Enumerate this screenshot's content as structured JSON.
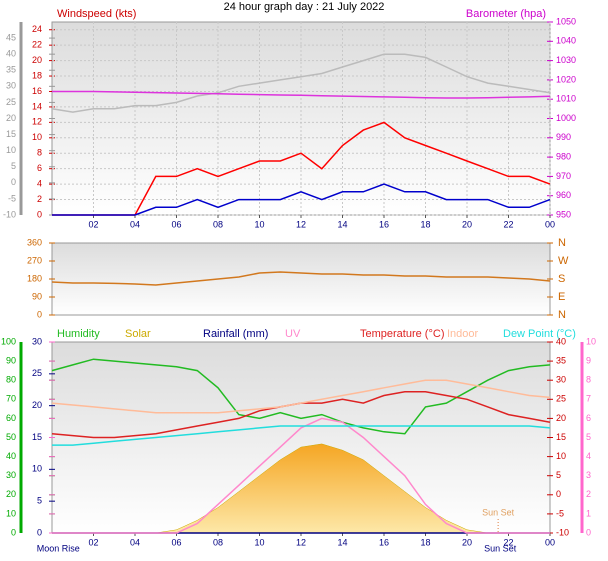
{
  "chart_data": [
    {
      "type": "line",
      "title": "24 hour graph day : 21 July 2022",
      "ylabel": "Windspeed (kts)",
      "y2label": "Barometer (hpa)",
      "x": [
        0,
        1,
        2,
        3,
        4,
        5,
        6,
        7,
        8,
        9,
        10,
        11,
        12,
        13,
        14,
        15,
        16,
        17,
        18,
        19,
        20,
        21,
        22,
        23,
        24
      ],
      "xlim": [
        0,
        24
      ],
      "xticks": [
        {
          "value": 2,
          "label": "02"
        },
        {
          "value": 4,
          "label": "04"
        },
        {
          "value": 6,
          "label": "06"
        },
        {
          "value": 8,
          "label": "08"
        },
        10,
        12,
        14,
        16,
        18,
        20,
        22,
        {
          "value": 24,
          "label": "00"
        }
      ],
      "ylim": [
        0,
        25
      ],
      "yticks": [
        0,
        2,
        4,
        6,
        8,
        10,
        12,
        14,
        16,
        18,
        20,
        22,
        24
      ],
      "ytick_color": "#cc0000",
      "y2lim": [
        950,
        1050
      ],
      "y2ticks": [
        950,
        960,
        970,
        980,
        990,
        1000,
        1010,
        1020,
        1030,
        1040,
        1050
      ],
      "y2tick_color": "#cc00cc",
      "y3lim": [
        -10,
        50
      ],
      "y3ticks": [
        -10,
        -5,
        0,
        5,
        10,
        15,
        20,
        25,
        30,
        35,
        40,
        45
      ],
      "y3tick_color": "#999999",
      "grid": true,
      "series": [
        {
          "color": "#bbbbbb",
          "axis": "y3",
          "values": [
            23,
            22,
            23,
            23,
            24,
            24,
            25,
            27,
            28,
            30,
            31,
            32,
            33,
            34,
            36,
            38,
            40,
            40,
            39,
            36,
            33,
            31,
            30,
            29,
            28
          ]
        },
        {
          "color": "#ff0000",
          "values": [
            0,
            0,
            0,
            0,
            0,
            5,
            5,
            6,
            5,
            6,
            7,
            7,
            8,
            6,
            9,
            11,
            12,
            10,
            9,
            8,
            7,
            6,
            5,
            5,
            4
          ]
        },
        {
          "color": "#0000cc",
          "values": [
            0,
            0,
            0,
            0,
            0,
            1,
            1,
            2,
            1,
            2,
            2,
            2,
            3,
            2,
            3,
            3,
            4,
            3,
            3,
            2,
            2,
            2,
            1,
            1,
            2
          ]
        },
        {
          "color": "#dd33dd",
          "axis": "y2",
          "values": [
            1014,
            1014,
            1014,
            1013.8,
            1013.6,
            1013.4,
            1013.2,
            1013,
            1012.8,
            1012.6,
            1012.4,
            1012.2,
            1012,
            1011.8,
            1011.6,
            1011.4,
            1011.2,
            1011,
            1010.8,
            1010.6,
            1010.6,
            1010.8,
            1011,
            1011.2,
            1011.5
          ]
        }
      ]
    },
    {
      "type": "line",
      "x": [
        0,
        1,
        2,
        3,
        4,
        5,
        6,
        7,
        8,
        9,
        10,
        11,
        12,
        13,
        14,
        15,
        16,
        17,
        18,
        19,
        20,
        21,
        22,
        23,
        24
      ],
      "xlim": [
        0,
        24
      ],
      "ylim": [
        0,
        360
      ],
      "yticks": [
        0,
        90,
        180,
        270,
        360
      ],
      "ytick_color": "#cc6600",
      "y2lim": [
        0,
        360
      ],
      "y2ticks": [
        {
          "value": 0,
          "label": "N"
        },
        {
          "value": 90,
          "label": "E"
        },
        {
          "value": 180,
          "label": "S"
        },
        {
          "value": 270,
          "label": "W"
        },
        {
          "value": 360,
          "label": "N"
        }
      ],
      "y2tick_color": "#cc6600",
      "series": [
        {
          "color": "#d2781e",
          "values": [
            165,
            160,
            160,
            158,
            155,
            150,
            160,
            170,
            180,
            190,
            210,
            215,
            210,
            205,
            205,
            200,
            200,
            195,
            195,
            190,
            190,
            190,
            185,
            180,
            170
          ]
        }
      ]
    },
    {
      "type": "line",
      "x": [
        0,
        1,
        2,
        3,
        4,
        5,
        6,
        7,
        8,
        9,
        10,
        11,
        12,
        13,
        14,
        15,
        16,
        17,
        18,
        19,
        20,
        21,
        22,
        23,
        24
      ],
      "xlim": [
        0,
        24
      ],
      "xticks": [
        {
          "value": 2,
          "label": "02"
        },
        {
          "value": 4,
          "label": "04"
        },
        {
          "value": 6,
          "label": "06"
        },
        {
          "value": 8,
          "label": "08"
        },
        10,
        12,
        14,
        16,
        18,
        20,
        22,
        {
          "value": 24,
          "label": "00"
        }
      ],
      "ylim": [
        0,
        30
      ],
      "yticks": [
        0,
        5,
        10,
        15,
        20,
        25,
        30
      ],
      "ytick_color": "#000080",
      "y2lim": [
        -10,
        40
      ],
      "y2ticks": [
        -10,
        -5,
        0,
        5,
        10,
        15,
        20,
        25,
        30,
        35,
        40
      ],
      "y2tick_color": "#cc0000",
      "y3lim": [
        0,
        100
      ],
      "y3ticks": [
        0,
        10,
        20,
        30,
        40,
        50,
        60,
        70,
        80,
        90,
        100
      ],
      "y3tick_color": "#00aa00",
      "y4lim": [
        0,
        10
      ],
      "y4ticks": [
        0,
        1,
        2,
        3,
        4,
        5,
        6,
        7,
        8,
        9,
        10
      ],
      "y4tick_color": "#ff66cc",
      "annotations": [
        {
          "text": "Moon Rise",
          "x": 0.3,
          "position": "below"
        },
        {
          "text": "Sun Set",
          "x": 21.6,
          "position": "below"
        },
        {
          "text": "Sun Set",
          "x": 21.5,
          "position": "inside"
        }
      ],
      "series": [
        {
          "name": "Humidity",
          "color": "#22bb22",
          "axis": "y3",
          "values": [
            85,
            88,
            91,
            90,
            89,
            88,
            87,
            85,
            76,
            62,
            60,
            63,
            60,
            62,
            58,
            55,
            53,
            52,
            66,
            68,
            74,
            80,
            85,
            87,
            88
          ]
        },
        {
          "name": "Solar",
          "color": "#ccaa00",
          "area": true,
          "values": [
            0,
            0,
            0,
            0,
            0,
            0,
            0.5,
            2,
            4,
            6.5,
            9,
            11.5,
            13.5,
            14,
            13,
            11.5,
            9,
            6.5,
            4,
            2,
            0.5,
            0,
            0,
            0,
            0
          ]
        },
        {
          "name": "Rainfall (mm)",
          "color": "#000080",
          "values": [
            0,
            0,
            0,
            0,
            0,
            0,
            0,
            0,
            0,
            0,
            0,
            0,
            0,
            0,
            0,
            0,
            0,
            0,
            0,
            0,
            0,
            0,
            0,
            0,
            0
          ]
        },
        {
          "name": "UV",
          "color": "#ff88cc",
          "axis": "y4",
          "values": [
            0,
            0,
            0,
            0,
            0,
            0,
            0,
            0.5,
            1.5,
            2.5,
            3.5,
            4.5,
            5.5,
            6,
            5.8,
            5,
            4,
            3,
            1.5,
            0.5,
            0,
            0,
            0,
            0,
            0
          ]
        },
        {
          "name": "Temperature (°C)",
          "color": "#dd2222",
          "axis": "y2",
          "values": [
            16,
            15.5,
            15,
            15,
            15.5,
            16,
            17,
            18,
            19,
            20,
            22,
            23,
            24,
            24,
            25,
            24,
            26,
            27,
            27,
            26,
            25,
            23,
            21,
            20,
            19
          ]
        },
        {
          "name": "Indoor",
          "color": "#ffbb99",
          "axis": "y2",
          "values": [
            24,
            23.5,
            23,
            22.5,
            22,
            21.5,
            21.5,
            21.5,
            21.5,
            22,
            22.5,
            23,
            24,
            25,
            26,
            27,
            28,
            29,
            30,
            30,
            29,
            28,
            27,
            26,
            25.5
          ]
        },
        {
          "name": "Dew Point (°C)",
          "color": "#22dddd",
          "axis": "y2",
          "values": [
            13,
            13,
            13.5,
            14,
            14.5,
            15,
            15.5,
            16,
            16.5,
            17,
            17.5,
            18,
            18,
            18,
            18,
            18,
            18,
            18,
            18,
            18,
            18,
            18,
            18,
            18,
            17.5
          ]
        }
      ]
    }
  ]
}
